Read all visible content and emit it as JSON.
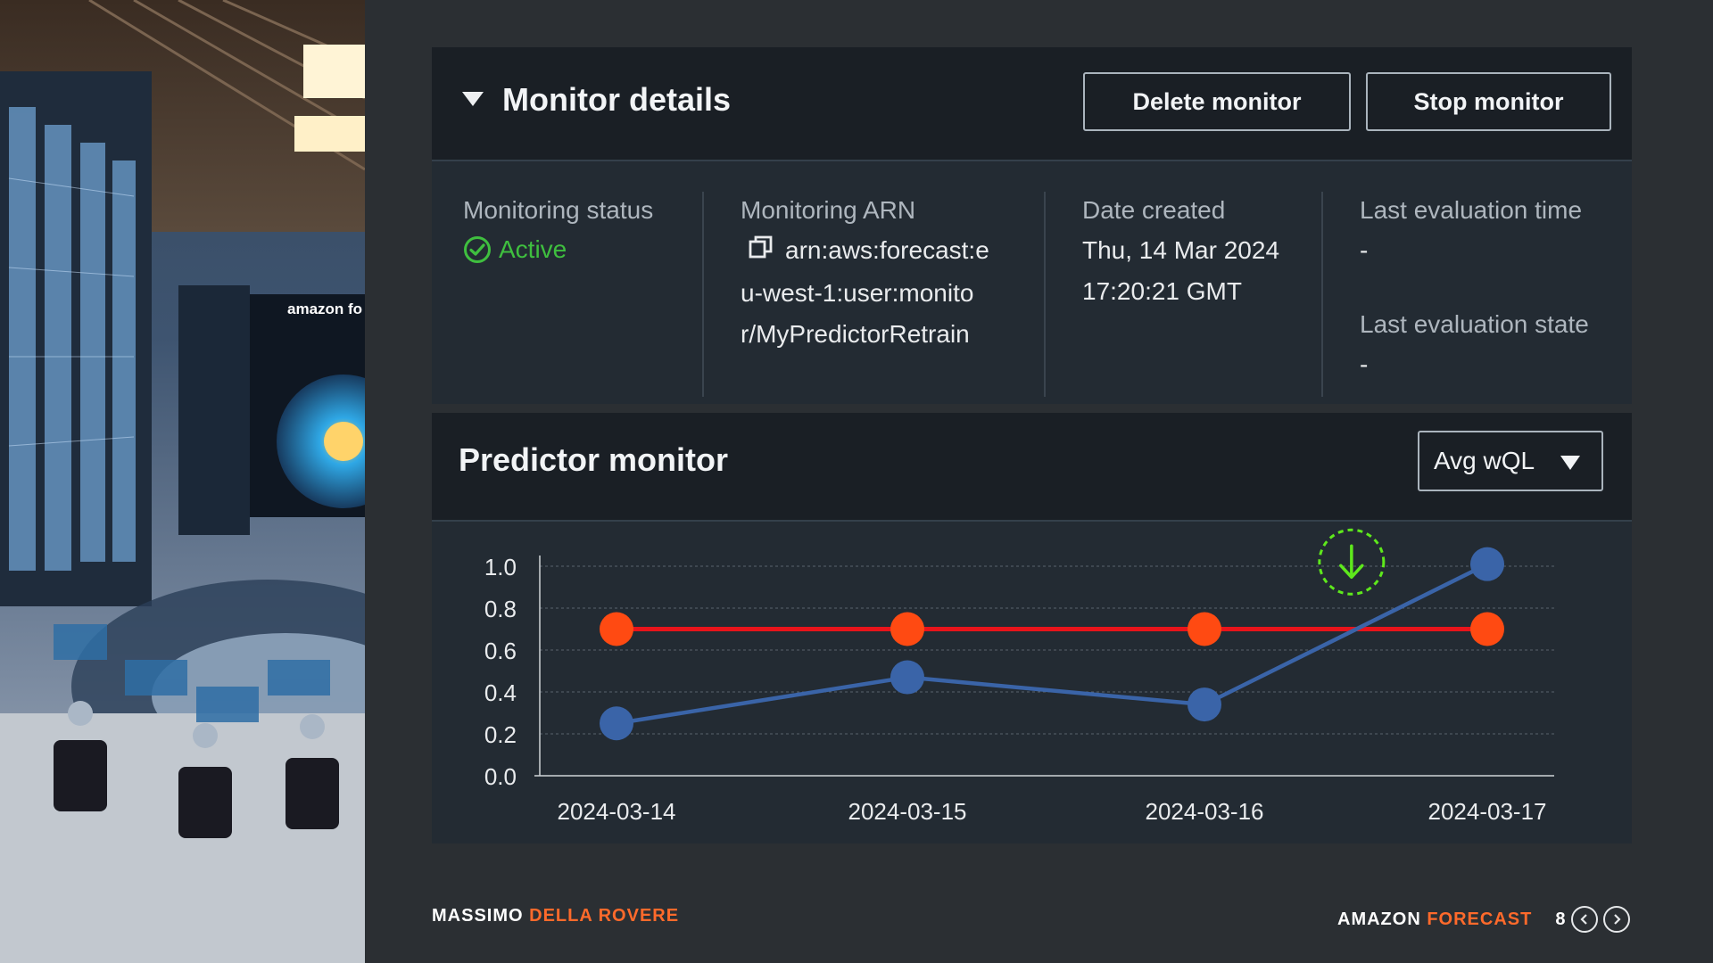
{
  "details": {
    "title": "Monitor details",
    "delete_label": "Delete monitor",
    "stop_label": "Stop monitor",
    "status_label": "Monitoring status",
    "status_value": "Active",
    "arn_label": "Monitoring ARN",
    "arn_lines": [
      "arn:aws:forecast:e",
      "u-west-1:user:monito",
      "r/MyPredictorRetrain"
    ],
    "date_label": "Date created",
    "date_lines": [
      "Thu, 14 Mar 2024",
      "17:20:21 GMT"
    ],
    "last_eval_time_label": "Last evaluation time",
    "last_eval_time_value": "-",
    "last_eval_state_label": "Last evaluation state",
    "last_eval_state_value": "-"
  },
  "predictor": {
    "title": "Predictor monitor",
    "metric_selected": "Avg wQL"
  },
  "chart_data": {
    "type": "line",
    "x": [
      "2024-03-14",
      "2024-03-15",
      "2024-03-16",
      "2024-03-17"
    ],
    "ylim": [
      0,
      1.0
    ],
    "yticks": [
      "0.0",
      "0.2",
      "0.4",
      "0.6",
      "0.8",
      "1.0"
    ],
    "grid": true,
    "series": [
      {
        "values": [
          0.7,
          0.7,
          0.7,
          0.7
        ],
        "color": "#e8141b",
        "marker_color": "#ff4a12"
      },
      {
        "values": [
          0.25,
          0.47,
          0.34,
          1.01
        ],
        "color": "#3a64a8",
        "marker_color": "#3a64a8"
      }
    ],
    "annotation": {
      "icon": "down-arrow-icon",
      "x": "2024-03-16",
      "x_offset_fraction": 0.52,
      "y": 1.02,
      "color": "#5ee81c"
    }
  },
  "footer": {
    "author_first": "MASSIMO",
    "author_last": "DELLA ROVERE",
    "brand_first": "AMAZON",
    "brand_last": "FORECAST",
    "page": "8"
  },
  "colors": {
    "accent": "#ff6a2b",
    "active": "#3fbf3f",
    "panel": "#232b33",
    "header": "#1a1f25"
  }
}
